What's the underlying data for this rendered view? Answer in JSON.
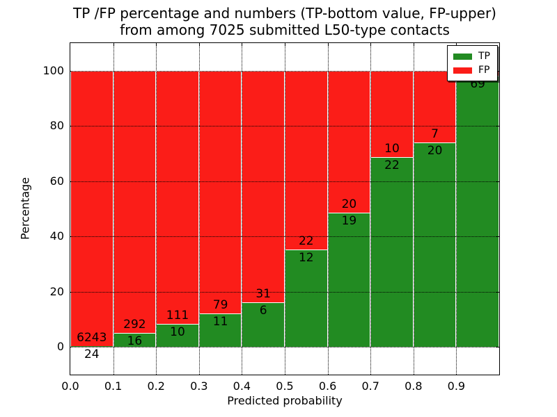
{
  "figure": {
    "title_line1": "TP /FP percentage and numbers (TP-bottom value, FP-upper)",
    "title_line2": "from among 7025 submitted L50-type contacts"
  },
  "chart_data": {
    "type": "bar",
    "stacked": true,
    "normalized_to_percent": true,
    "title": "TP /FP percentage and numbers (TP-bottom value, FP-upper)\nfrom among 7025 submitted L50-type contacts",
    "xlabel": "Predicted probability",
    "ylabel": "Percentage",
    "total_submitted": 7025,
    "xlim": [
      0.0,
      1.0
    ],
    "ylim": [
      -10,
      110
    ],
    "x_ticks": [
      "0.0",
      "0.1",
      "0.2",
      "0.3",
      "0.4",
      "0.5",
      "0.6",
      "0.7",
      "0.8",
      "0.9"
    ],
    "y_ticks": [
      0,
      20,
      40,
      60,
      80,
      100
    ],
    "grid": "dotted black, horizontal at y ticks and vertical at x ticks",
    "legend_position": "upper right",
    "legend": [
      {
        "name": "TP",
        "color": "#228b22"
      },
      {
        "name": "FP",
        "color": "#fb1d18"
      }
    ],
    "bins": [
      "0.0-0.1",
      "0.1-0.2",
      "0.2-0.3",
      "0.3-0.4",
      "0.4-0.5",
      "0.5-0.6",
      "0.6-0.7",
      "0.7-0.8",
      "0.8-0.9",
      "0.9-1.0"
    ],
    "series": [
      {
        "name": "TP",
        "counts": [
          24,
          16,
          10,
          11,
          6,
          12,
          19,
          22,
          20,
          69
        ],
        "pct": [
          0.4,
          5.2,
          8.3,
          12.2,
          16.2,
          35.3,
          48.7,
          68.8,
          74.1,
          98.2
        ]
      },
      {
        "name": "FP",
        "counts": [
          6243,
          292,
          111,
          79,
          31,
          22,
          20,
          10,
          7,
          null
        ],
        "pct": [
          99.6,
          94.8,
          91.7,
          87.8,
          83.8,
          64.7,
          51.3,
          31.2,
          25.9,
          1.8
        ]
      }
    ],
    "bar_labels": {
      "tp": [
        "24",
        "16",
        "10",
        "11",
        "6",
        "12",
        "19",
        "22",
        "20",
        "69"
      ],
      "fp": [
        "6243",
        "292",
        "111",
        "79",
        "31",
        "22",
        "20",
        "10",
        "7",
        ""
      ]
    }
  }
}
